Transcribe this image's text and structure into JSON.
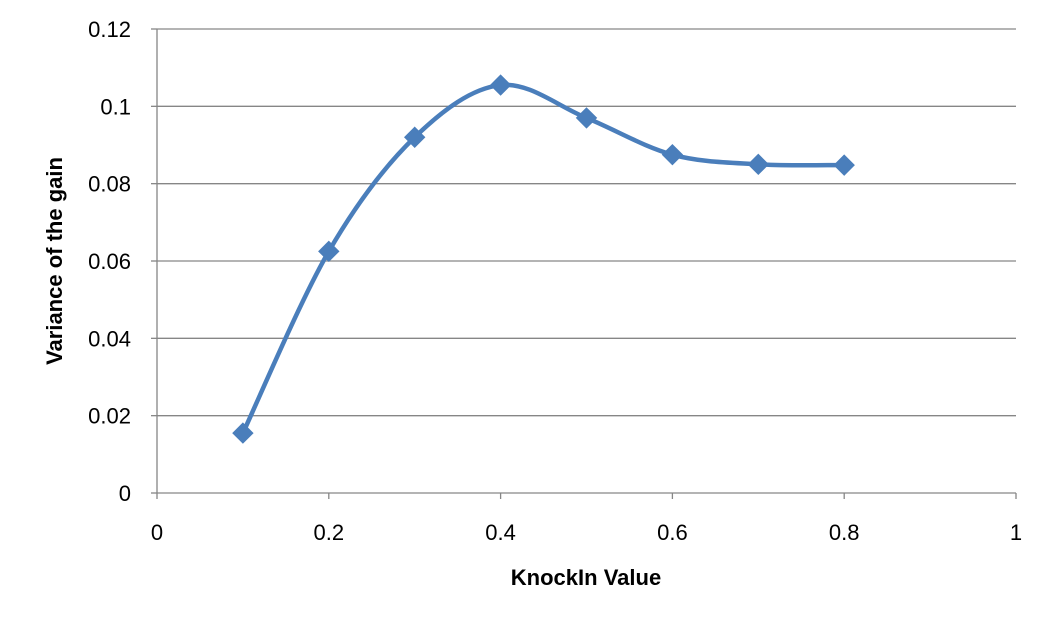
{
  "chart_data": {
    "type": "scatter",
    "title": "",
    "xlabel": "KnockIn Value",
    "ylabel": "Variance of the gain",
    "xlim": [
      0,
      1
    ],
    "ylim": [
      0,
      0.12
    ],
    "xticks": [
      0,
      0.2,
      0.4,
      0.6,
      0.8,
      1
    ],
    "yticks": [
      0,
      0.02,
      0.04,
      0.06,
      0.08,
      0.1,
      0.12
    ],
    "xtick_labels": [
      "0",
      "0.2",
      "0.4",
      "0.6",
      "0.8",
      "1"
    ],
    "ytick_labels": [
      "0",
      "0.02",
      "0.04",
      "0.06",
      "0.08",
      "0.1",
      "0.12"
    ],
    "grid": "horizontal",
    "legend": "none",
    "line_style": "smoothed",
    "marker": "diamond",
    "color": "#4a7ebb",
    "series": [
      {
        "x": [
          0.1,
          0.2,
          0.3,
          0.4,
          0.5,
          0.6,
          0.7,
          0.8
        ],
        "values": [
          0.0155,
          0.0625,
          0.092,
          0.1055,
          0.097,
          0.0875,
          0.085,
          0.0848
        ]
      }
    ]
  }
}
